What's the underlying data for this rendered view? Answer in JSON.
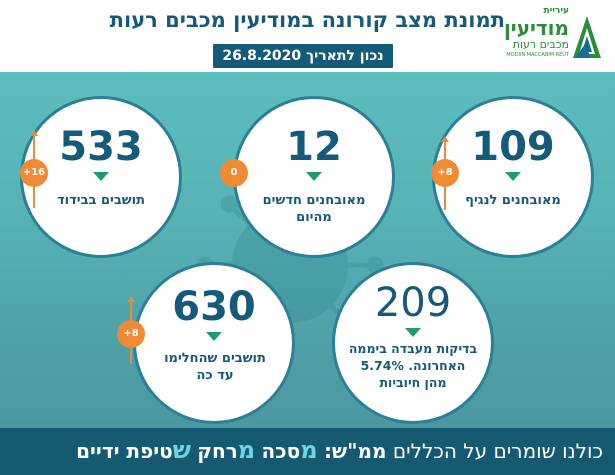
{
  "header": {
    "title": "תמונת מצב קורונה במודיעין מכבים רעות",
    "date_badge": "נכון לתאריך 26.8.2020"
  },
  "logo": {
    "line1": "עיריית",
    "line2": "מודיעין",
    "line3": "מכבים רעות",
    "line4": "MODIIN MACCABIM REUT",
    "color": "#2b8d3a"
  },
  "stats": [
    {
      "number": "109",
      "label": "מאובחנים לנגיף",
      "change": "+8"
    },
    {
      "number": "12",
      "label": "מאובחנים חדשים מהיום",
      "change": "0"
    },
    {
      "number": "533",
      "label": "תושבים בבידוד",
      "change": "+16"
    },
    {
      "number": "209",
      "label": "בדיקות מעבדה ביממה האחרונה. 5.74% מהן חיוביות",
      "change": ""
    },
    {
      "number": "630",
      "label": "תושבים שהחלימו עד כה",
      "change": "+8"
    }
  ],
  "footer": {
    "prefix": "כולנו שומרים על הכללים",
    "bold": "ממ\"ש:",
    "m1": "מ",
    "w1": "סכה",
    "m2": "מ",
    "w2": "רחק",
    "m3": "ש",
    "w3": "טיפת ידיים"
  },
  "colors": {
    "title": "#155a78",
    "accent_orange": "#f08a34",
    "triangle_green": "#1f9a72",
    "footer_bg": "#165a72",
    "footer_highlight": "#6fd3e6"
  }
}
